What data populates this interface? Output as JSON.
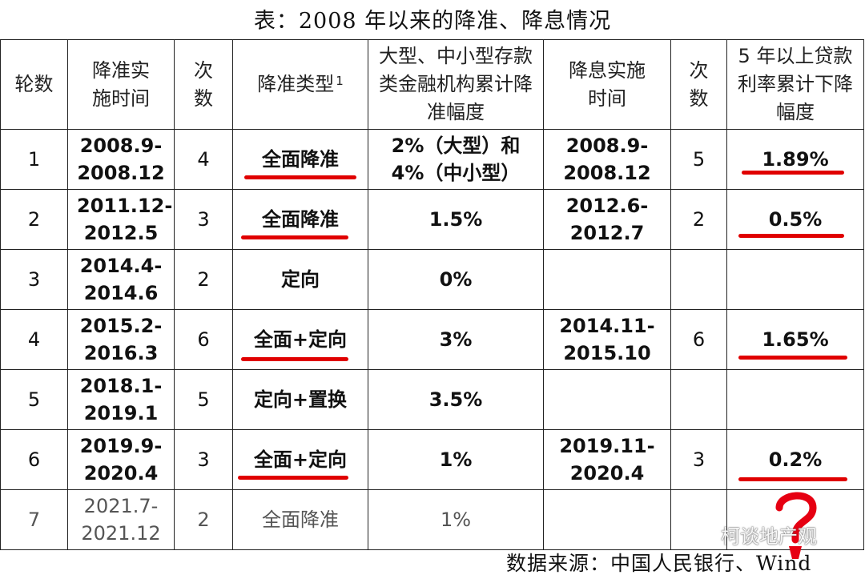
{
  "title": "表：2008 年以来的降准、降息情况",
  "headers": {
    "round": "轮数",
    "rrr_time": "降准实施时间",
    "rrr_count": "次数",
    "rrr_type": "降准类型",
    "rrr_type_note": "1",
    "rrr_cut": "大型、中小型存款类金融机构累计降准幅度",
    "rate_time": "降息实施时间",
    "rate_count": "次数",
    "rate_cut": "5 年以上贷款利率累计下降幅度"
  },
  "rows": [
    {
      "round": "1",
      "rrr_time": "2008.9-2008.12",
      "rrr_count": "4",
      "rrr_type": "全面降准",
      "rrr_cut": "2%（大型）和4%（中小型）",
      "rate_time": "2008.9-2008.12",
      "rate_count": "5",
      "rate_cut": "1.89%"
    },
    {
      "round": "2",
      "rrr_time": "2011.12-2012.5",
      "rrr_count": "3",
      "rrr_type": "全面降准",
      "rrr_cut": "1.5%",
      "rate_time": "2012.6-2012.7",
      "rate_count": "2",
      "rate_cut": "0.5%"
    },
    {
      "round": "3",
      "rrr_time": "2014.4-2014.6",
      "rrr_count": "2",
      "rrr_type": "定向",
      "rrr_cut": "0%",
      "rate_time": "",
      "rate_count": "",
      "rate_cut": ""
    },
    {
      "round": "4",
      "rrr_time": "2015.2-2016.3",
      "rrr_count": "6",
      "rrr_type": "全面+定向",
      "rrr_cut": "3%",
      "rate_time": "2014.11-2015.10",
      "rate_count": "6",
      "rate_cut": "1.65%"
    },
    {
      "round": "5",
      "rrr_time": "2018.1-2019.1",
      "rrr_count": "5",
      "rrr_type": "定向+置换",
      "rrr_cut": "3.5%",
      "rate_time": "",
      "rate_count": "",
      "rate_cut": ""
    },
    {
      "round": "6",
      "rrr_time": "2019.9-2020.4",
      "rrr_count": "3",
      "rrr_type": "全面+定向",
      "rrr_cut": "1%",
      "rate_time": "2019.11-2020.4",
      "rate_count": "3",
      "rate_cut": "0.2%"
    },
    {
      "round": "7",
      "rrr_time": "2021.7-2021.12",
      "rrr_count": "2",
      "rrr_type": "全面降准",
      "rrr_cut": "1%",
      "rate_time": "",
      "rate_count": "",
      "rate_cut": ""
    }
  ],
  "source": "数据来源：中国人民银行、Wind",
  "watermark": "柯谈地产观",
  "annotations": {
    "underline_color": "#e00000",
    "question_mark": "?"
  }
}
